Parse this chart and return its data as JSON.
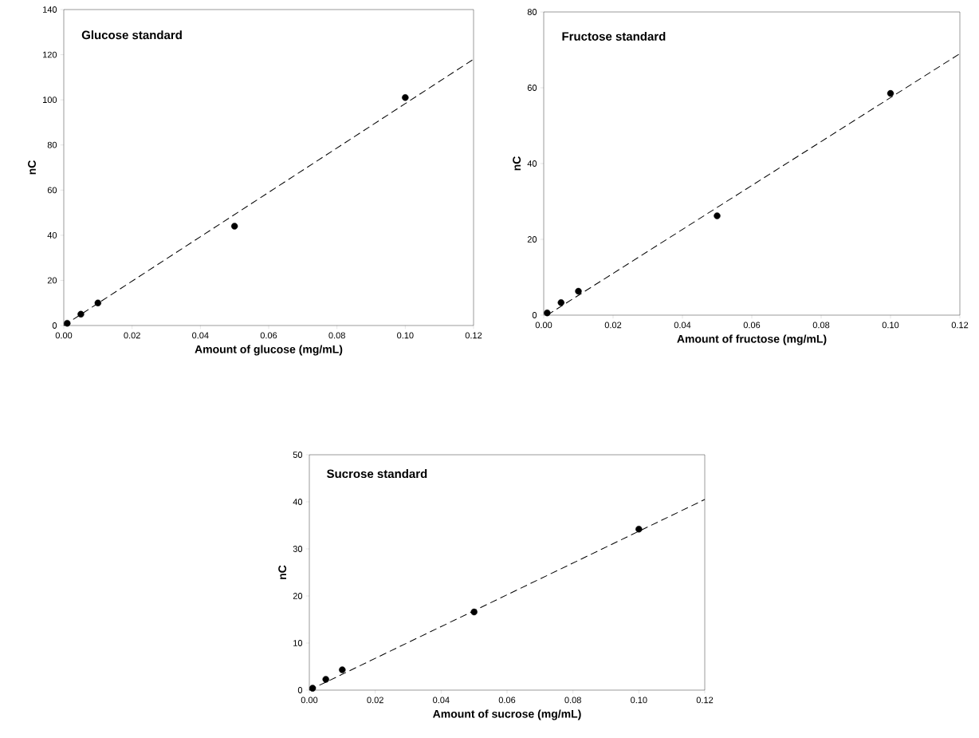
{
  "chart_data": [
    {
      "type": "scatter",
      "title": "Glucose standard",
      "xlabel": "Amount of glucose (mg/mL)",
      "ylabel": "nC",
      "xlim": [
        0,
        0.12
      ],
      "ylim": [
        0,
        140
      ],
      "xticks": [
        {
          "value": 0,
          "label": "0.00"
        },
        {
          "value": 0.02,
          "label": "0.02"
        },
        {
          "value": 0.04,
          "label": "0.04"
        },
        {
          "value": 0.06,
          "label": "0.06"
        },
        {
          "value": 0.08,
          "label": "0.08"
        },
        {
          "value": 0.1,
          "label": "0.10"
        },
        {
          "value": 0.12,
          "label": "0.12"
        }
      ],
      "yticks": [
        0,
        20,
        40,
        60,
        80,
        100,
        120,
        140
      ],
      "series": [
        {
          "color": "#000000",
          "marker": "circle",
          "x": [
            0.001,
            0.005,
            0.01,
            0.05,
            0.1
          ],
          "values": [
            1,
            5,
            10,
            44,
            101
          ]
        },
        {
          "type": "line",
          "color": "#000000",
          "line_style": "dashed",
          "x": [
            0,
            0.12
          ],
          "values": [
            0,
            118
          ]
        }
      ]
    },
    {
      "type": "scatter",
      "title": "Fructose standard",
      "xlabel": "Amount of fructose (mg/mL)",
      "ylabel": "nC",
      "xlim": [
        0,
        0.12
      ],
      "ylim": [
        0,
        80
      ],
      "xticks": [
        {
          "value": 0,
          "label": "0.00"
        },
        {
          "value": 0.02,
          "label": "0.02"
        },
        {
          "value": 0.04,
          "label": "0.04"
        },
        {
          "value": 0.06,
          "label": "0.06"
        },
        {
          "value": 0.08,
          "label": "0.08"
        },
        {
          "value": 0.1,
          "label": "0.10"
        },
        {
          "value": 0.12,
          "label": "0.12"
        }
      ],
      "yticks": [
        0,
        20,
        40,
        60,
        80
      ],
      "series": [
        {
          "color": "#000000",
          "marker": "circle",
          "x": [
            0.001,
            0.005,
            0.01,
            0.05,
            0.1
          ],
          "values": [
            0.6,
            3.3,
            6.3,
            26.2,
            58.5
          ]
        },
        {
          "type": "line",
          "color": "#000000",
          "line_style": "dashed",
          "x": [
            0.001,
            0.12
          ],
          "values": [
            0,
            69
          ]
        }
      ]
    },
    {
      "type": "scatter",
      "title": "Sucrose standard",
      "xlabel": "Amount of sucrose (mg/mL)",
      "ylabel": "nC",
      "xlim": [
        0,
        0.12
      ],
      "ylim": [
        0,
        50
      ],
      "xticks": [
        {
          "value": 0,
          "label": "0.00"
        },
        {
          "value": 0.02,
          "label": "0.02"
        },
        {
          "value": 0.04,
          "label": "0.04"
        },
        {
          "value": 0.06,
          "label": "0.06"
        },
        {
          "value": 0.08,
          "label": "0.08"
        },
        {
          "value": 0.1,
          "label": "0.10"
        },
        {
          "value": 0.12,
          "label": "0.12"
        }
      ],
      "yticks": [
        0,
        10,
        20,
        30,
        40,
        50
      ],
      "series": [
        {
          "color": "#000000",
          "marker": "circle",
          "x": [
            0.001,
            0.005,
            0.01,
            0.05,
            0.1
          ],
          "values": [
            0.4,
            2.3,
            4.3,
            16.6,
            34.2
          ]
        },
        {
          "type": "line",
          "color": "#000000",
          "line_style": "dashed",
          "x": [
            0,
            0.12
          ],
          "values": [
            0,
            40.5
          ]
        }
      ]
    }
  ]
}
